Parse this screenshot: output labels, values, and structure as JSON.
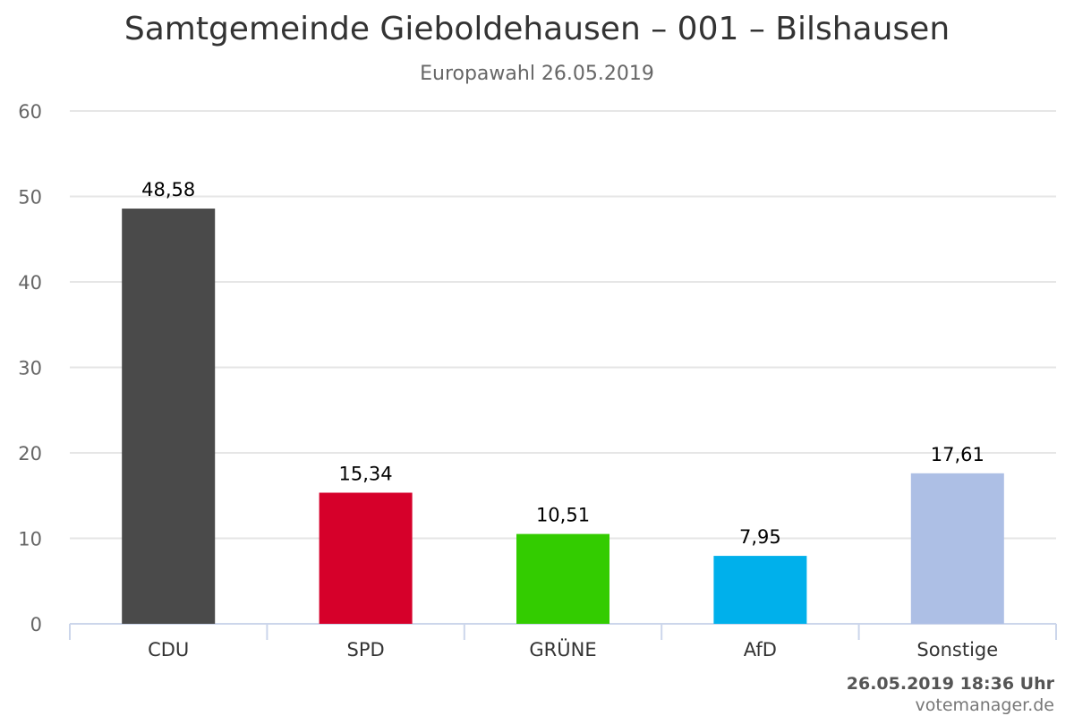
{
  "chart_data": {
    "type": "bar",
    "title": "Samtgemeinde Gieboldehausen – 001 – Bilshausen",
    "subtitle": "Europawahl 26.05.2019",
    "categories": [
      "CDU",
      "SPD",
      "GRÜNE",
      "AfD",
      "Sonstige"
    ],
    "values": [
      48.58,
      15.34,
      10.51,
      7.95,
      17.61
    ],
    "value_labels": [
      "48,58",
      "15,34",
      "10,51",
      "7,95",
      "17,61"
    ],
    "colors": [
      "#4a4a4a",
      "#d6002a",
      "#33cc00",
      "#00b0eb",
      "#adbfe5"
    ],
    "ylim": [
      0,
      60
    ],
    "yticks": [
      0,
      10,
      20,
      30,
      40,
      50,
      60
    ],
    "grid": true,
    "legend": "none"
  },
  "credits": {
    "timestamp": "26.05.2019 18:36 Uhr",
    "site": "votemanager.de"
  }
}
